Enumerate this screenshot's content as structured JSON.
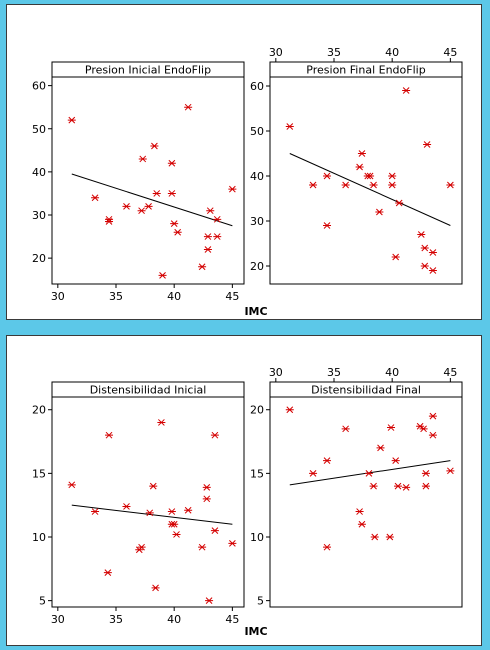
{
  "colors": {
    "background": "#5cc8e8",
    "marker": "#d40000",
    "line": "#000000"
  },
  "chart_data": [
    {
      "type": "scatter",
      "title": "Presion Inicial EndoFlip",
      "xlabel": "IMC",
      "xlim": [
        29.5,
        46
      ],
      "ylim": [
        14,
        62
      ],
      "xticks": [
        "30",
        "35",
        "40",
        "45"
      ],
      "yticks": [
        "20",
        "30",
        "40",
        "50",
        "60"
      ],
      "x_axis_side": "bottom",
      "points": [
        [
          31.2,
          52
        ],
        [
          33.2,
          34
        ],
        [
          34.4,
          29
        ],
        [
          34.4,
          28.5
        ],
        [
          35.9,
          32
        ],
        [
          37.2,
          31
        ],
        [
          37.3,
          43
        ],
        [
          37.8,
          32
        ],
        [
          38.3,
          46
        ],
        [
          38.5,
          35
        ],
        [
          39.0,
          16
        ],
        [
          39.8,
          35
        ],
        [
          39.8,
          42
        ],
        [
          40.0,
          28
        ],
        [
          40.3,
          26
        ],
        [
          41.2,
          55
        ],
        [
          42.4,
          18
        ],
        [
          42.9,
          25
        ],
        [
          42.9,
          22
        ],
        [
          43.1,
          31
        ],
        [
          43.7,
          25
        ],
        [
          43.7,
          29
        ],
        [
          45.0,
          36
        ]
      ],
      "trend": [
        [
          31.2,
          39.5
        ],
        [
          45.0,
          27.5
        ]
      ]
    },
    {
      "type": "scatter",
      "title": "Presion Final EndoFlip",
      "xlabel": "IMC",
      "xlim": [
        29.5,
        46
      ],
      "ylim": [
        16,
        62
      ],
      "xticks": [
        "30",
        "35",
        "40",
        "45"
      ],
      "yticks": [
        "20",
        "30",
        "40",
        "50",
        "60"
      ],
      "x_axis_side": "top",
      "points": [
        [
          31.2,
          51
        ],
        [
          33.2,
          38
        ],
        [
          34.4,
          40
        ],
        [
          34.4,
          29
        ],
        [
          36.0,
          38
        ],
        [
          37.2,
          42
        ],
        [
          37.4,
          45
        ],
        [
          37.9,
          40
        ],
        [
          38.1,
          40
        ],
        [
          38.4,
          38
        ],
        [
          38.9,
          32
        ],
        [
          40.0,
          40
        ],
        [
          40.0,
          38
        ],
        [
          40.3,
          22
        ],
        [
          40.6,
          34
        ],
        [
          41.2,
          59
        ],
        [
          42.5,
          27
        ],
        [
          42.8,
          24
        ],
        [
          42.8,
          20
        ],
        [
          43.0,
          47
        ],
        [
          43.5,
          23
        ],
        [
          43.5,
          19
        ],
        [
          45.0,
          38
        ]
      ],
      "trend": [
        [
          31.2,
          45
        ],
        [
          45.0,
          29
        ]
      ]
    },
    {
      "type": "scatter",
      "title": "Distensibilidad Inicial",
      "xlabel": "IMC",
      "xlim": [
        29.5,
        46
      ],
      "ylim": [
        4.5,
        21
      ],
      "xticks": [
        "30",
        "35",
        "40",
        "45"
      ],
      "yticks": [
        "5",
        "10",
        "15",
        "20"
      ],
      "x_axis_side": "bottom",
      "points": [
        [
          31.2,
          14.1
        ],
        [
          33.2,
          12
        ],
        [
          34.3,
          7.2
        ],
        [
          34.4,
          18
        ],
        [
          35.9,
          12.4
        ],
        [
          37.0,
          9
        ],
        [
          37.2,
          9.2
        ],
        [
          37.9,
          11.9
        ],
        [
          38.2,
          14
        ],
        [
          38.4,
          6
        ],
        [
          38.9,
          19
        ],
        [
          39.8,
          12
        ],
        [
          39.8,
          11
        ],
        [
          40.0,
          11
        ],
        [
          40.2,
          10.2
        ],
        [
          41.2,
          12.1
        ],
        [
          42.4,
          9.2
        ],
        [
          42.8,
          13.9
        ],
        [
          42.8,
          13
        ],
        [
          43.0,
          5
        ],
        [
          43.5,
          18
        ],
        [
          43.5,
          10.5
        ],
        [
          45.0,
          9.5
        ]
      ],
      "trend": [
        [
          31.2,
          12.5
        ],
        [
          45.0,
          11
        ]
      ]
    },
    {
      "type": "scatter",
      "title": "Distensibilidad Final",
      "xlabel": "IMC",
      "xlim": [
        29.5,
        46
      ],
      "ylim": [
        4.5,
        21
      ],
      "xticks": [
        "30",
        "35",
        "40",
        "45"
      ],
      "yticks": [
        "5",
        "10",
        "15",
        "20"
      ],
      "x_axis_side": "top",
      "points": [
        [
          31.2,
          20
        ],
        [
          33.2,
          15
        ],
        [
          34.4,
          16
        ],
        [
          34.4,
          9.2
        ],
        [
          36.0,
          18.5
        ],
        [
          37.2,
          12
        ],
        [
          37.4,
          11
        ],
        [
          38.0,
          15
        ],
        [
          38.4,
          14
        ],
        [
          38.5,
          10
        ],
        [
          39.0,
          17
        ],
        [
          39.8,
          10
        ],
        [
          39.9,
          18.6
        ],
        [
          40.3,
          16
        ],
        [
          40.5,
          14
        ],
        [
          41.2,
          13.9
        ],
        [
          42.4,
          18.7
        ],
        [
          42.7,
          18.5
        ],
        [
          42.9,
          15
        ],
        [
          42.9,
          14
        ],
        [
          43.5,
          19.5
        ],
        [
          43.5,
          18
        ],
        [
          45.0,
          15.2
        ]
      ],
      "trend": [
        [
          31.2,
          14.1
        ],
        [
          45.0,
          16
        ]
      ]
    }
  ]
}
